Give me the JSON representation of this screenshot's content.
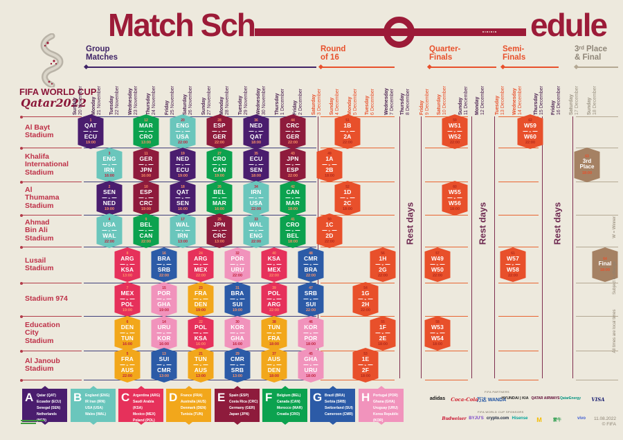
{
  "title": {
    "left": "Match Sch",
    "right": "edule"
  },
  "logo": {
    "line1": "FIFA WORLD CUP",
    "line2": "Qatar2022"
  },
  "colors": {
    "background": "#EDE9DD",
    "title": "#9C1B38",
    "purple": "#3F2366",
    "orange": "#E8502B",
    "tan": "#A58163",
    "tan_text": "#8F8678",
    "date_dark": "#4A2150",
    "date_final": "#9C9484",
    "stadium_label": "#BE3148",
    "group_line": "#3F3F7A",
    "left_line": "#B23B49",
    "rest_text": "#6F2B52",
    "side_note": "#8D8271",
    "vline": "#7E2D4E"
  },
  "phases": [
    {
      "id": "group",
      "lines": "Group\nMatches",
      "color": "#3F2366"
    },
    {
      "id": "r16",
      "lines": "Round\nof 16",
      "color": "#E8502B"
    },
    {
      "id": "qf",
      "lines": "Quarter-\nFinals",
      "color": "#E8502B"
    },
    {
      "id": "sf",
      "lines": "Semi-\nFinals",
      "color": "#E8502B"
    },
    {
      "id": "final",
      "lines": "3ʳᵈ Place\n& Final",
      "color": "#8F8678"
    }
  ],
  "columns": [
    {
      "day": "Sunday",
      "date": "20 November",
      "phase": "group"
    },
    {
      "day": "Monday",
      "date": "21 November",
      "phase": "group"
    },
    {
      "day": "Tuesday",
      "date": "22 November",
      "phase": "group"
    },
    {
      "day": "Wednesday",
      "date": "23 November",
      "phase": "group"
    },
    {
      "day": "Thursday",
      "date": "24 November",
      "phase": "group"
    },
    {
      "day": "Friday",
      "date": "25 November",
      "phase": "group"
    },
    {
      "day": "Saturday",
      "date": "26 November",
      "phase": "group"
    },
    {
      "day": "Sunday",
      "date": "27 November",
      "phase": "group"
    },
    {
      "day": "Monday",
      "date": "28 November",
      "phase": "group"
    },
    {
      "day": "Tuesday",
      "date": "29 November",
      "phase": "group"
    },
    {
      "day": "Wednesday",
      "date": "30 November",
      "phase": "group"
    },
    {
      "day": "Thursday",
      "date": "1 December",
      "phase": "group"
    },
    {
      "day": "Friday",
      "date": "2 December",
      "phase": "group"
    },
    {
      "day": "Saturday",
      "date": "3 December",
      "phase": "r16"
    },
    {
      "day": "Sunday",
      "date": "4 December",
      "phase": "r16"
    },
    {
      "day": "Monday",
      "date": "5 December",
      "phase": "r16"
    },
    {
      "day": "Tuesday",
      "date": "6 December",
      "phase": "r16"
    },
    {
      "day": "Wednesday",
      "date": "7 December",
      "phase": "rest"
    },
    {
      "day": "Thursday",
      "date": "8 December",
      "phase": "rest"
    },
    {
      "day": "Friday",
      "date": "9 December",
      "phase": "qf"
    },
    {
      "day": "Saturday",
      "date": "10 December",
      "phase": "qf"
    },
    {
      "day": "Sunday",
      "date": "11 December",
      "phase": "rest"
    },
    {
      "day": "Monday",
      "date": "12 December",
      "phase": "rest"
    },
    {
      "day": "Tuesday",
      "date": "13 December",
      "phase": "sf"
    },
    {
      "day": "Wednesday",
      "date": "14 December",
      "phase": "sf"
    },
    {
      "day": "Thursday",
      "date": "15 December",
      "phase": "rest"
    },
    {
      "day": "Friday",
      "date": "16 December",
      "phase": "rest"
    },
    {
      "day": "Saturday",
      "date": "17 December",
      "phase": "final"
    },
    {
      "day": "Sunday",
      "date": "18 December",
      "phase": "final"
    }
  ],
  "stadiums": [
    {
      "id": "al-bayt",
      "lines": "Al Bayt\nStadium"
    },
    {
      "id": "khalifa",
      "lines": "Khalifa\nInternational\nStadium"
    },
    {
      "id": "al-thumama",
      "lines": "Al\nThumama\nStadium"
    },
    {
      "id": "ahmad-bin-ali",
      "lines": "Ahmad\nBin Ali\nStadium"
    },
    {
      "id": "lusail",
      "lines": "Lusail\nStadium"
    },
    {
      "id": "stadium-974",
      "lines": "Stadium 974"
    },
    {
      "id": "education-city",
      "lines": "Education\nCity\nStadium"
    },
    {
      "id": "al-janoub",
      "lines": "Al Janoub\nStadium"
    }
  ],
  "group_colors": {
    "A": "#4A1D6E",
    "B": "#6AC6BC",
    "C": "#E6315B",
    "D": "#F2A71B",
    "E": "#8E1B3C",
    "F": "#0CA24F",
    "G": "#2C5BA7",
    "H": "#F193BC",
    "KO": "#E8502B",
    "FINAL": "#A58163"
  },
  "matches": [
    {
      "n": 1,
      "home": "QAT",
      "away": "ECU",
      "time": "19:00",
      "group": "A",
      "stadium": "al-bayt",
      "date": "20 November"
    },
    {
      "n": 12,
      "home": "MAR",
      "away": "CRO",
      "time": "13:00",
      "group": "F",
      "stadium": "al-bayt",
      "date": "23 November"
    },
    {
      "n": 20,
      "home": "ENG",
      "away": "USA",
      "time": "22:00",
      "group": "B",
      "stadium": "al-bayt",
      "date": "25 November"
    },
    {
      "n": 28,
      "home": "ESP",
      "away": "GER",
      "time": "22:00",
      "group": "E",
      "stadium": "al-bayt",
      "date": "27 November"
    },
    {
      "n": 36,
      "home": "NED",
      "away": "QAT",
      "time": "18:00",
      "group": "A",
      "stadium": "al-bayt",
      "date": "29 November"
    },
    {
      "n": 44,
      "home": "CRC",
      "away": "GER",
      "time": "22:00",
      "group": "E",
      "stadium": "al-bayt",
      "date": "1 December"
    },
    {
      "n": 51,
      "home": "1B",
      "away": "2A",
      "time": "22:00",
      "group": "KO",
      "stadium": "al-bayt",
      "date": "4 December"
    },
    {
      "n": 59,
      "home": "W51",
      "away": "W52",
      "time": "22:00",
      "group": "KO",
      "stadium": "al-bayt",
      "date": "10 December"
    },
    {
      "n": 62,
      "home": "W59",
      "away": "W60",
      "time": "22:00",
      "group": "KO",
      "stadium": "al-bayt",
      "date": "14 December"
    },
    {
      "n": 3,
      "home": "ENG",
      "away": "IRN",
      "time": "16:00",
      "group": "B",
      "stadium": "khalifa",
      "date": "21 November"
    },
    {
      "n": 11,
      "home": "GER",
      "away": "JPN",
      "time": "16:00",
      "group": "E",
      "stadium": "khalifa",
      "date": "23 November"
    },
    {
      "n": 19,
      "home": "NED",
      "away": "ECU",
      "time": "19:00",
      "group": "A",
      "stadium": "khalifa",
      "date": "25 November"
    },
    {
      "n": 27,
      "home": "CRO",
      "away": "CAN",
      "time": "19:00",
      "group": "F",
      "stadium": "khalifa",
      "date": "27 November"
    },
    {
      "n": 35,
      "home": "ECU",
      "away": "SEN",
      "time": "18:00",
      "group": "A",
      "stadium": "khalifa",
      "date": "29 November"
    },
    {
      "n": 43,
      "home": "JPN",
      "away": "ESP",
      "time": "22:00",
      "group": "E",
      "stadium": "khalifa",
      "date": "1 December"
    },
    {
      "n": 49,
      "home": "1A",
      "away": "2B",
      "time": "18:00",
      "group": "KO",
      "stadium": "khalifa",
      "date": "3 December"
    },
    {
      "n": 63,
      "label": "3rd\nPlace",
      "time": "18:00",
      "group": "FINAL",
      "stadium": "khalifa",
      "date": "17 December"
    },
    {
      "n": 2,
      "home": "SEN",
      "away": "NED",
      "time": "19:00",
      "group": "A",
      "stadium": "al-thumama",
      "date": "21 November"
    },
    {
      "n": 10,
      "home": "ESP",
      "away": "CRC",
      "time": "19:00",
      "group": "E",
      "stadium": "al-thumama",
      "date": "23 November"
    },
    {
      "n": 18,
      "home": "QAT",
      "away": "SEN",
      "time": "16:00",
      "group": "A",
      "stadium": "al-thumama",
      "date": "25 November"
    },
    {
      "n": 26,
      "home": "BEL",
      "away": "MAR",
      "time": "16:00",
      "group": "F",
      "stadium": "al-thumama",
      "date": "27 November"
    },
    {
      "n": 34,
      "home": "IRN",
      "away": "USA",
      "time": "22:00",
      "group": "B",
      "stadium": "al-thumama",
      "date": "29 November"
    },
    {
      "n": 42,
      "home": "CAN",
      "away": "MAR",
      "time": "18:00",
      "group": "F",
      "stadium": "al-thumama",
      "date": "1 December"
    },
    {
      "n": 52,
      "home": "1D",
      "away": "2C",
      "time": "18:00",
      "group": "KO",
      "stadium": "al-thumama",
      "date": "4 December"
    },
    {
      "n": 60,
      "home": "W55",
      "away": "W56",
      "time": "18:00",
      "group": "KO",
      "stadium": "al-thumama",
      "date": "10 December"
    },
    {
      "n": 4,
      "home": "USA",
      "away": "WAL",
      "time": "22:00",
      "group": "B",
      "stadium": "ahmad-bin-ali",
      "date": "21 November"
    },
    {
      "n": 9,
      "home": "BEL",
      "away": "CAN",
      "time": "22:00",
      "group": "F",
      "stadium": "ahmad-bin-ali",
      "date": "23 November"
    },
    {
      "n": 17,
      "home": "WAL",
      "away": "IRN",
      "time": "13:00",
      "group": "B",
      "stadium": "ahmad-bin-ali",
      "date": "25 November"
    },
    {
      "n": 25,
      "home": "JPN",
      "away": "CRC",
      "time": "13:00",
      "group": "E",
      "stadium": "ahmad-bin-ali",
      "date": "27 November"
    },
    {
      "n": 33,
      "home": "WAL",
      "away": "ENG",
      "time": "22:00",
      "group": "B",
      "stadium": "ahmad-bin-ali",
      "date": "29 November"
    },
    {
      "n": 41,
      "home": "CRO",
      "away": "BEL",
      "time": "18:00",
      "group": "F",
      "stadium": "ahmad-bin-ali",
      "date": "1 December"
    },
    {
      "n": 50,
      "home": "1C",
      "away": "2D",
      "time": "22:00",
      "group": "KO",
      "stadium": "ahmad-bin-ali",
      "date": "3 December"
    },
    {
      "n": 8,
      "home": "ARG",
      "away": "KSA",
      "time": "13:00",
      "group": "C",
      "stadium": "lusail",
      "date": "22 November"
    },
    {
      "n": 16,
      "home": "BRA",
      "away": "SRB",
      "time": "22:00",
      "group": "G",
      "stadium": "lusail",
      "date": "24 November"
    },
    {
      "n": 24,
      "home": "ARG",
      "away": "MEX",
      "time": "22:00",
      "group": "C",
      "stadium": "lusail",
      "date": "26 November"
    },
    {
      "n": 32,
      "home": "POR",
      "away": "URU",
      "time": "22:00",
      "group": "H",
      "stadium": "lusail",
      "date": "28 November"
    },
    {
      "n": 40,
      "home": "KSA",
      "away": "MEX",
      "time": "22:00",
      "group": "C",
      "stadium": "lusail",
      "date": "30 November"
    },
    {
      "n": 48,
      "home": "CMR",
      "away": "BRA",
      "time": "22:00",
      "group": "G",
      "stadium": "lusail",
      "date": "2 December"
    },
    {
      "n": 56,
      "home": "1H",
      "away": "2G",
      "time": "22:00",
      "group": "KO",
      "stadium": "lusail",
      "date": "6 December"
    },
    {
      "n": 57,
      "home": "W49",
      "away": "W50",
      "time": "22:00",
      "group": "KO",
      "stadium": "lusail",
      "date": "9 December"
    },
    {
      "n": 61,
      "home": "W57",
      "away": "W58",
      "time": "22:00",
      "group": "KO",
      "stadium": "lusail",
      "date": "13 December"
    },
    {
      "n": 64,
      "label": "Final",
      "time": "18:00",
      "group": "FINAL",
      "stadium": "lusail",
      "date": "18 December"
    },
    {
      "n": 7,
      "home": "MEX",
      "away": "POL",
      "time": "19:00",
      "group": "C",
      "stadium": "stadium-974",
      "date": "22 November"
    },
    {
      "n": 15,
      "home": "POR",
      "away": "GHA",
      "time": "19:00",
      "group": "H",
      "stadium": "stadium-974",
      "date": "24 November"
    },
    {
      "n": 23,
      "home": "FRA",
      "away": "DEN",
      "time": "19:00",
      "group": "D",
      "stadium": "stadium-974",
      "date": "26 November"
    },
    {
      "n": 31,
      "home": "BRA",
      "away": "SUI",
      "time": "19:00",
      "group": "G",
      "stadium": "stadium-974",
      "date": "28 November"
    },
    {
      "n": 39,
      "home": "POL",
      "away": "ARG",
      "time": "22:00",
      "group": "C",
      "stadium": "stadium-974",
      "date": "30 November"
    },
    {
      "n": 47,
      "home": "SRB",
      "away": "SUI",
      "time": "22:00",
      "group": "G",
      "stadium": "stadium-974",
      "date": "2 December"
    },
    {
      "n": 54,
      "home": "1G",
      "away": "2H",
      "time": "22:00",
      "group": "KO",
      "stadium": "stadium-974",
      "date": "5 December"
    },
    {
      "n": 6,
      "home": "DEN",
      "away": "TUN",
      "time": "16:00",
      "group": "D",
      "stadium": "education-city",
      "date": "22 November"
    },
    {
      "n": 14,
      "home": "URU",
      "away": "KOR",
      "time": "16:00",
      "group": "H",
      "stadium": "education-city",
      "date": "24 November"
    },
    {
      "n": 22,
      "home": "POL",
      "away": "KSA",
      "time": "16:00",
      "group": "C",
      "stadium": "education-city",
      "date": "26 November"
    },
    {
      "n": 30,
      "home": "KOR",
      "away": "GHA",
      "time": "16:00",
      "group": "H",
      "stadium": "education-city",
      "date": "28 November"
    },
    {
      "n": 38,
      "home": "TUN",
      "away": "FRA",
      "time": "18:00",
      "group": "D",
      "stadium": "education-city",
      "date": "30 November"
    },
    {
      "n": 46,
      "home": "KOR",
      "away": "POR",
      "time": "18:00",
      "group": "H",
      "stadium": "education-city",
      "date": "2 December"
    },
    {
      "n": 55,
      "home": "1F",
      "away": "2E",
      "time": "18:00",
      "group": "KO",
      "stadium": "education-city",
      "date": "6 December"
    },
    {
      "n": 58,
      "home": "W53",
      "away": "W54",
      "time": "18:00",
      "group": "KO",
      "stadium": "education-city",
      "date": "9 December"
    },
    {
      "n": 5,
      "home": "FRA",
      "away": "AUS",
      "time": "22:00",
      "group": "D",
      "stadium": "al-janoub",
      "date": "22 November"
    },
    {
      "n": 13,
      "home": "SUI",
      "away": "CMR",
      "time": "13:00",
      "group": "G",
      "stadium": "al-janoub",
      "date": "24 November"
    },
    {
      "n": 21,
      "home": "TUN",
      "away": "AUS",
      "time": "13:00",
      "group": "D",
      "stadium": "al-janoub",
      "date": "26 November"
    },
    {
      "n": 29,
      "home": "CMR",
      "away": "SRB",
      "time": "13:00",
      "group": "G",
      "stadium": "al-janoub",
      "date": "28 November"
    },
    {
      "n": 37,
      "home": "AUS",
      "away": "DEN",
      "time": "18:00",
      "group": "D",
      "stadium": "al-janoub",
      "date": "30 November"
    },
    {
      "n": 45,
      "home": "GHA",
      "away": "URU",
      "time": "18:00",
      "group": "H",
      "stadium": "al-janoub",
      "date": "2 December"
    },
    {
      "n": 53,
      "home": "1E",
      "away": "2F",
      "time": "18:00",
      "group": "KO",
      "stadium": "al-janoub",
      "date": "5 December"
    }
  ],
  "legend": [
    {
      "letter": "A",
      "teams": [
        "Qatar (QAT)",
        "Ecuador (ECU)",
        "Senegal (SEN)",
        "Netherlands (NED)"
      ]
    },
    {
      "letter": "B",
      "teams": [
        "England (ENG)",
        "IR Iran (IRN)",
        "USA (USA)",
        "Wales (WAL)"
      ]
    },
    {
      "letter": "C",
      "teams": [
        "Argentina (ARG)",
        "Saudi Arabia (KSA)",
        "Mexico (MEX)",
        "Poland (POL)"
      ]
    },
    {
      "letter": "D",
      "teams": [
        "France (FRA)",
        "Australia (AUS)",
        "Denmark (DEN)",
        "Tunisia (TUN)"
      ]
    },
    {
      "letter": "E",
      "teams": [
        "Spain (ESP)",
        "Costa Rica (CRC)",
        "Germany (GER)",
        "Japan (JPN)"
      ]
    },
    {
      "letter": "F",
      "teams": [
        "Belgium (BEL)",
        "Canada (CAN)",
        "Morocco (MAR)",
        "Croatia (CRO)"
      ]
    },
    {
      "letter": "G",
      "teams": [
        "Brazil (BRA)",
        "Serbia (SRB)",
        "Switzerland (SUI)",
        "Cameroon (CMR)"
      ]
    },
    {
      "letter": "H",
      "teams": [
        "Portugal (POR)",
        "Ghana (GHA)",
        "Uruguay (URU)",
        "Korea Republic (KOR)"
      ]
    }
  ],
  "notes": {
    "rest": "Rest days",
    "winner": "W = Winner",
    "subject": "Subject to change",
    "local": "All times are local times"
  },
  "footer": {
    "partners_caption": "FIFA PARTNERS",
    "sponsors_caption": "FIFA WORLD CUP SPONSORS",
    "partners": [
      {
        "name": "adidas",
        "color": "#111111"
      },
      {
        "name": "Coca-Cola",
        "color": "#D0202E",
        "script": true
      },
      {
        "name": "万达 WANDA",
        "color": "#1B4FA0"
      },
      {
        "name": "HYUNDAI | KIA",
        "color": "#222222"
      },
      {
        "name": "QATAR AIRWAYS",
        "color": "#5C0632"
      },
      {
        "name": "QatarEnergy",
        "color": "#00927F"
      },
      {
        "name": "VISA",
        "color": "#1A1F71",
        "script": true
      }
    ],
    "sponsors": [
      {
        "name": "Budweiser",
        "color": "#C8102E",
        "script": true
      },
      {
        "name": "BYJU'S",
        "color": "#7A46C8"
      },
      {
        "name": "crypto.com",
        "color": "#13203A"
      },
      {
        "name": "Hisense",
        "color": "#00A39A"
      },
      {
        "name": "M",
        "color": "#F5BD02"
      },
      {
        "name": "蒙牛",
        "color": "#2E9E4F"
      },
      {
        "name": "vivo",
        "color": "#3C5AD2"
      }
    ],
    "version": "11.08.2022",
    "copyright": "© FIFA"
  }
}
